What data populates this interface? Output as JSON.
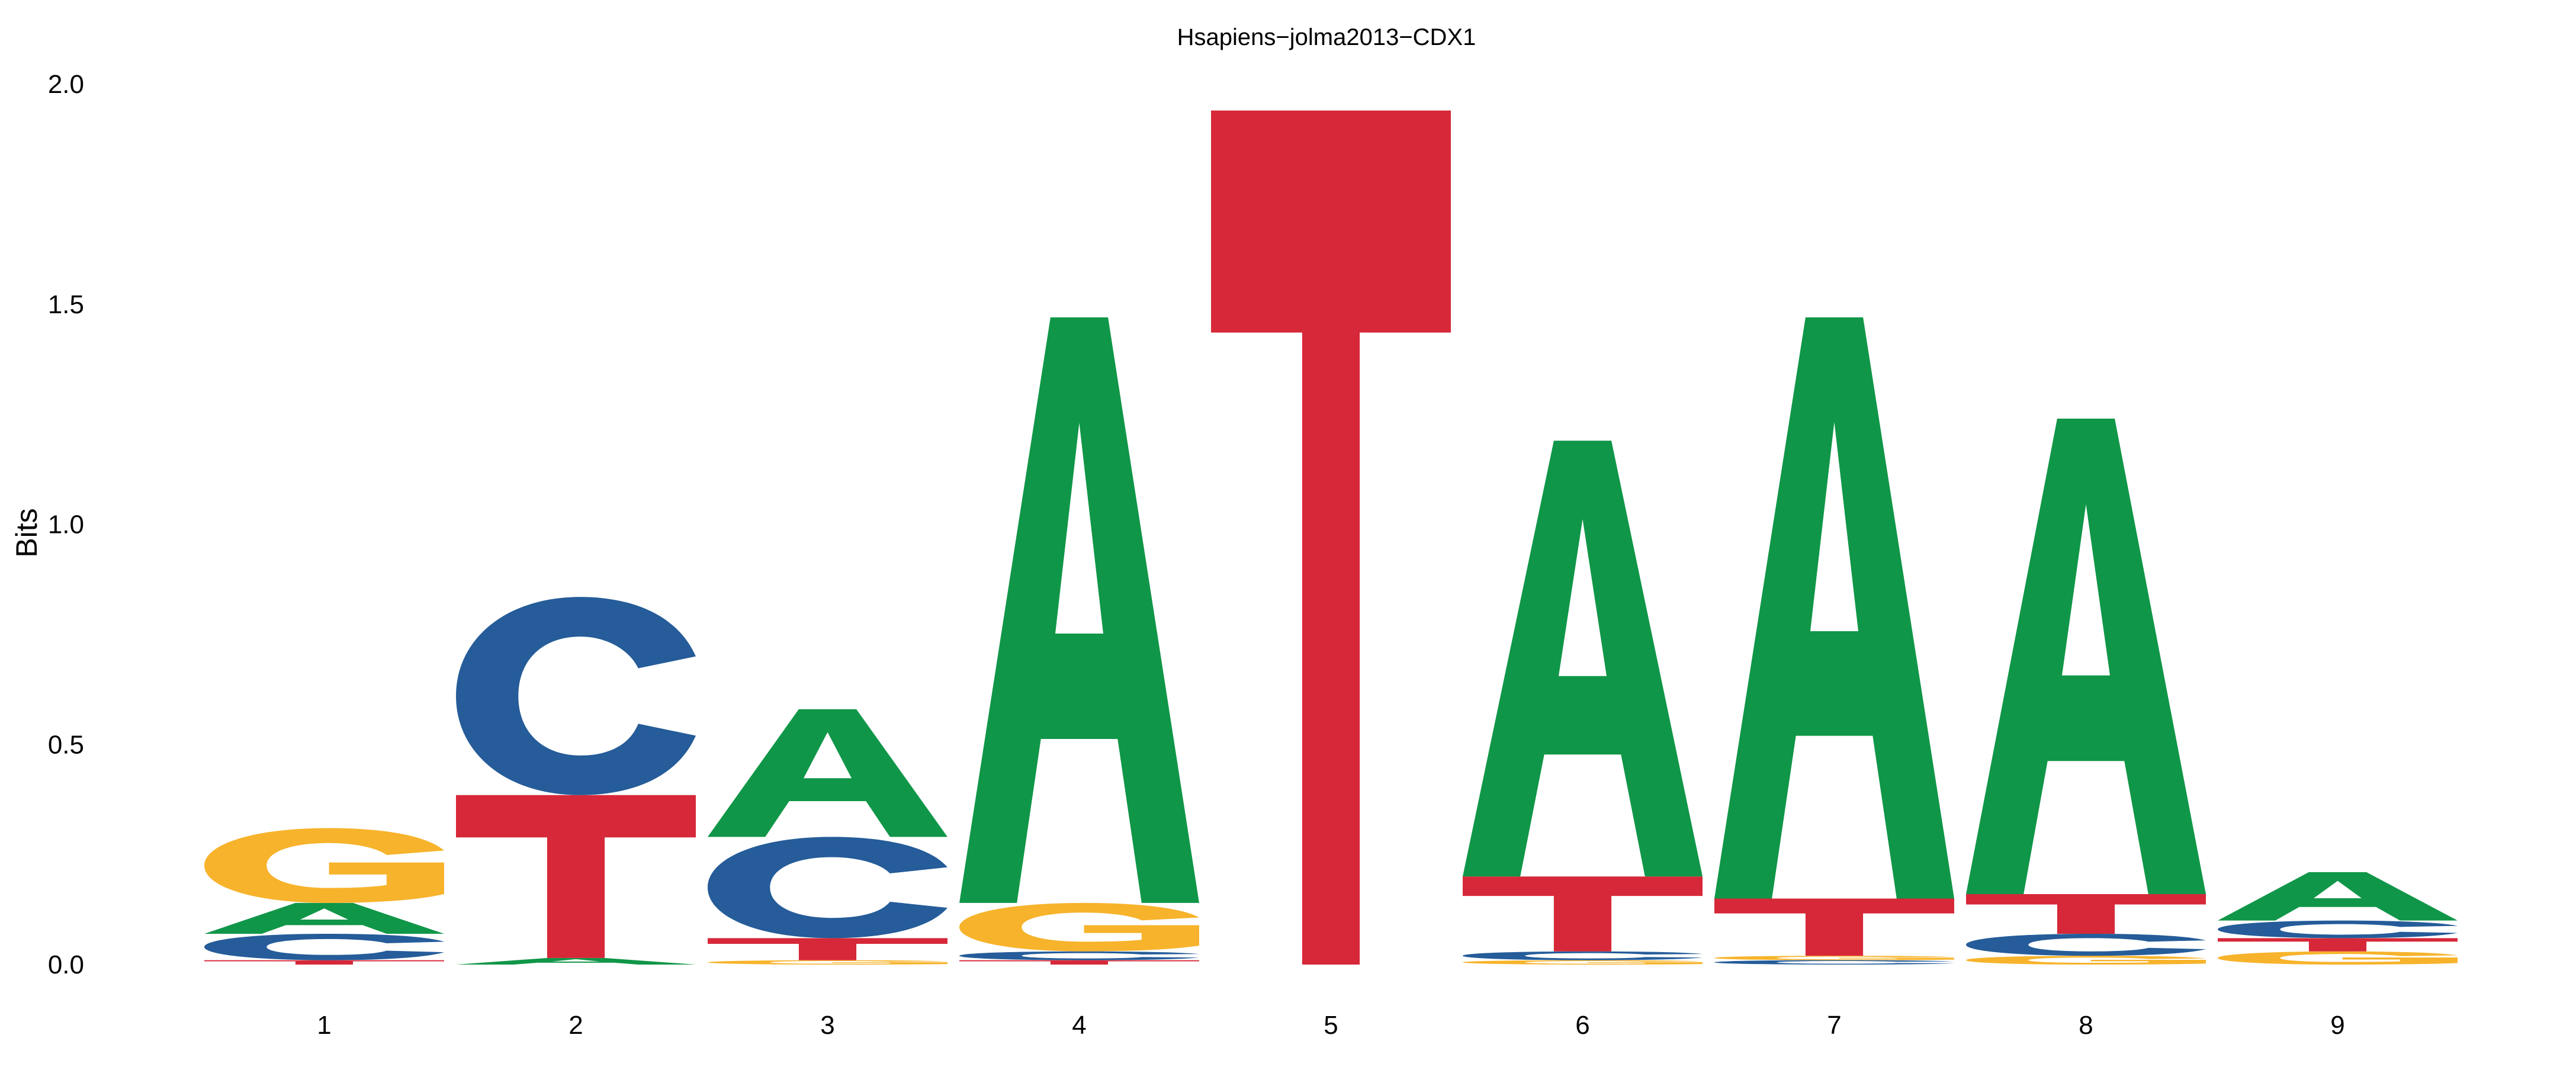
{
  "chart_data": {
    "type": "sequence-logo",
    "title": "Hsapiens−jolma2013−CDX1",
    "ylabel": "Bits",
    "xlabel": "",
    "ylim": [
      0,
      2.0
    ],
    "yticks": [
      "0.0",
      "0.5",
      "1.0",
      "1.5",
      "2.0"
    ],
    "ytick_values": [
      0,
      0.5,
      1.0,
      1.5,
      2.0
    ],
    "grid": false,
    "colors": {
      "A": "#109648",
      "C": "#255C99",
      "G": "#F7B32B",
      "T": "#D62839"
    },
    "positions": [
      {
        "label": "1",
        "stack": [
          {
            "letter": "T",
            "bits": 0.01
          },
          {
            "letter": "C",
            "bits": 0.06
          },
          {
            "letter": "A",
            "bits": 0.07
          },
          {
            "letter": "G",
            "bits": 0.17
          }
        ]
      },
      {
        "label": "2",
        "stack": [
          {
            "letter": "A",
            "bits": 0.015
          },
          {
            "letter": "T",
            "bits": 0.37
          },
          {
            "letter": "C",
            "bits": 0.45
          }
        ]
      },
      {
        "label": "3",
        "stack": [
          {
            "letter": "G",
            "bits": 0.01
          },
          {
            "letter": "T",
            "bits": 0.05
          },
          {
            "letter": "C",
            "bits": 0.23
          },
          {
            "letter": "A",
            "bits": 0.29
          }
        ]
      },
      {
        "label": "4",
        "stack": [
          {
            "letter": "T",
            "bits": 0.01
          },
          {
            "letter": "C",
            "bits": 0.02
          },
          {
            "letter": "G",
            "bits": 0.11
          },
          {
            "letter": "A",
            "bits": 1.33
          }
        ]
      },
      {
        "label": "5",
        "stack": [
          {
            "letter": "T",
            "bits": 1.94
          }
        ]
      },
      {
        "label": "6",
        "stack": [
          {
            "letter": "G",
            "bits": 0.01
          },
          {
            "letter": "C",
            "bits": 0.02
          },
          {
            "letter": "T",
            "bits": 0.17
          },
          {
            "letter": "A",
            "bits": 0.99
          }
        ]
      },
      {
        "label": "7",
        "stack": [
          {
            "letter": "C",
            "bits": 0.01
          },
          {
            "letter": "G",
            "bits": 0.01
          },
          {
            "letter": "T",
            "bits": 0.13
          },
          {
            "letter": "A",
            "bits": 1.32
          }
        ]
      },
      {
        "label": "8",
        "stack": [
          {
            "letter": "G",
            "bits": 0.02
          },
          {
            "letter": "C",
            "bits": 0.05
          },
          {
            "letter": "T",
            "bits": 0.09
          },
          {
            "letter": "A",
            "bits": 1.08
          }
        ]
      },
      {
        "label": "9",
        "stack": [
          {
            "letter": "G",
            "bits": 0.03
          },
          {
            "letter": "T",
            "bits": 0.03
          },
          {
            "letter": "C",
            "bits": 0.04
          },
          {
            "letter": "A",
            "bits": 0.11
          }
        ]
      }
    ]
  }
}
